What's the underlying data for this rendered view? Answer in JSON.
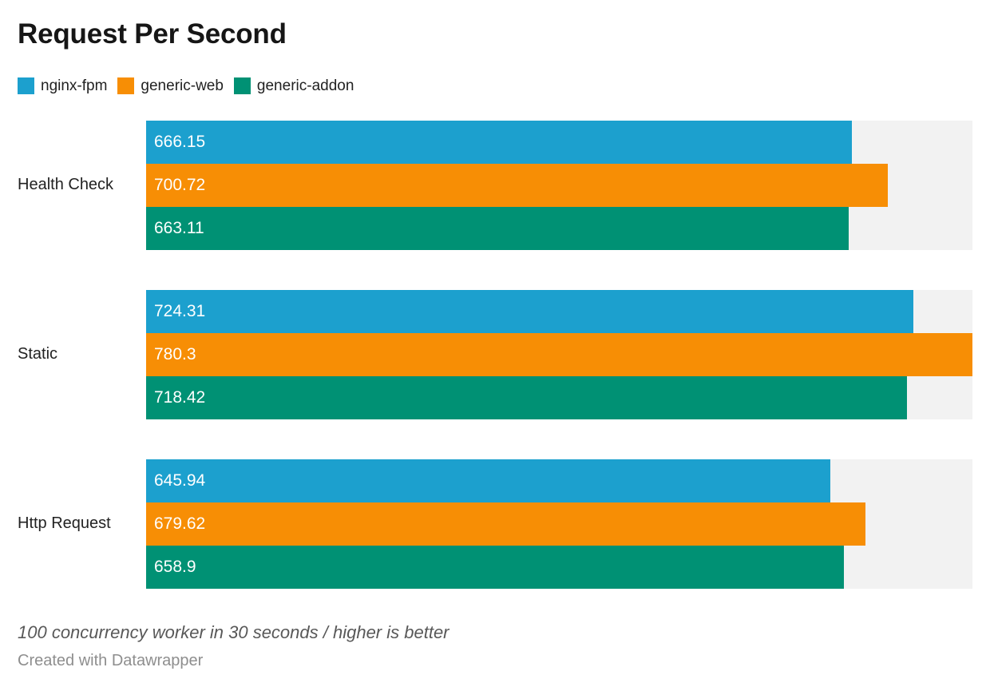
{
  "title": "Request Per Second",
  "legend": {
    "items": [
      {
        "label": "nginx-fpm",
        "color": "#1CA0CE"
      },
      {
        "label": "generic-web",
        "color": "#F78E05"
      },
      {
        "label": "generic-addon",
        "color": "#009174"
      }
    ]
  },
  "chart_data": {
    "type": "bar",
    "orientation": "horizontal",
    "title": "Request Per Second",
    "categories": [
      "Health Check",
      "Static",
      "Http Request"
    ],
    "series": [
      {
        "name": "nginx-fpm",
        "color": "#1CA0CE",
        "values": [
          666.15,
          724.31,
          645.94
        ]
      },
      {
        "name": "generic-web",
        "color": "#F78E05",
        "values": [
          700.72,
          780.3,
          679.62
        ]
      },
      {
        "name": "generic-addon",
        "color": "#009174",
        "values": [
          663.11,
          718.42,
          658.9
        ]
      }
    ],
    "xlim": [
      0,
      780.3
    ],
    "grid": false,
    "track_color": "#f2f2f2",
    "legend_position": "top",
    "value_labels": "inside-start"
  },
  "footer": {
    "note": "100 concurrency worker in 30 seconds / higher is better",
    "credit": "Created with Datawrapper"
  }
}
